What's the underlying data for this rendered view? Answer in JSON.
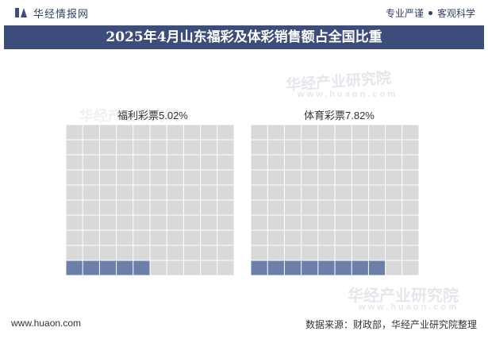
{
  "header": {
    "brand": "华经情报网",
    "tagline_left": "专业严谨",
    "tagline_right": "客观科学"
  },
  "title": "2025年4月山东福彩及体彩销售额占全国比重",
  "watermark": {
    "name": "华经产业研究院",
    "url": "www.huaon.com"
  },
  "footer": {
    "website": "www.huaon.com",
    "source": "数据来源：财政部，华经产业研究院整理"
  },
  "colors": {
    "filled": "#6c7fa8",
    "empty": "#d9d9d9",
    "title_bg": "#3c4d7c"
  },
  "chart_data": [
    {
      "type": "waffle",
      "label": "福利彩票5.02%",
      "value": 5.02,
      "grid": [
        10,
        10
      ]
    },
    {
      "type": "waffle",
      "label": "体育彩票7.82%",
      "value": 7.82,
      "grid": [
        10,
        10
      ]
    }
  ]
}
